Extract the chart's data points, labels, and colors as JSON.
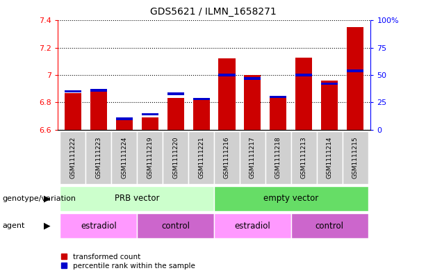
{
  "title": "GDS5621 / ILMN_1658271",
  "samples": [
    "GSM1111222",
    "GSM1111223",
    "GSM1111224",
    "GSM1111219",
    "GSM1111220",
    "GSM1111221",
    "GSM1111216",
    "GSM1111217",
    "GSM1111218",
    "GSM1111213",
    "GSM1111214",
    "GSM1111215"
  ],
  "red_values": [
    6.87,
    6.88,
    6.68,
    6.69,
    6.83,
    6.83,
    7.12,
    7.0,
    6.84,
    7.13,
    6.96,
    7.35
  ],
  "blue_percentiles": [
    35,
    36,
    10,
    14,
    33,
    28,
    50,
    47,
    30,
    50,
    42,
    54
  ],
  "ylim_left": [
    6.6,
    7.4
  ],
  "ylim_right": [
    0,
    100
  ],
  "yticks_left": [
    6.6,
    6.8,
    7.0,
    7.2,
    7.4
  ],
  "ytick_labels_left": [
    "6.6",
    "6.8",
    "7",
    "7.2",
    "7.4"
  ],
  "yticks_right": [
    0,
    25,
    50,
    75,
    100
  ],
  "ytick_labels_right": [
    "0",
    "25",
    "50",
    "75",
    "100%"
  ],
  "bar_bottom": 6.6,
  "red_color": "#cc0000",
  "blue_color": "#0000cc",
  "prb_color": "#ccffcc",
  "empty_color": "#66dd66",
  "estradiol_color": "#ff99ff",
  "control_color": "#cc66cc",
  "sample_bg_color": "#d0d0d0",
  "legend_items": [
    {
      "color": "#cc0000",
      "label": "transformed count"
    },
    {
      "color": "#0000cc",
      "label": "percentile rank within the sample"
    }
  ],
  "genotype_label": "genotype/variation",
  "agent_label": "agent"
}
